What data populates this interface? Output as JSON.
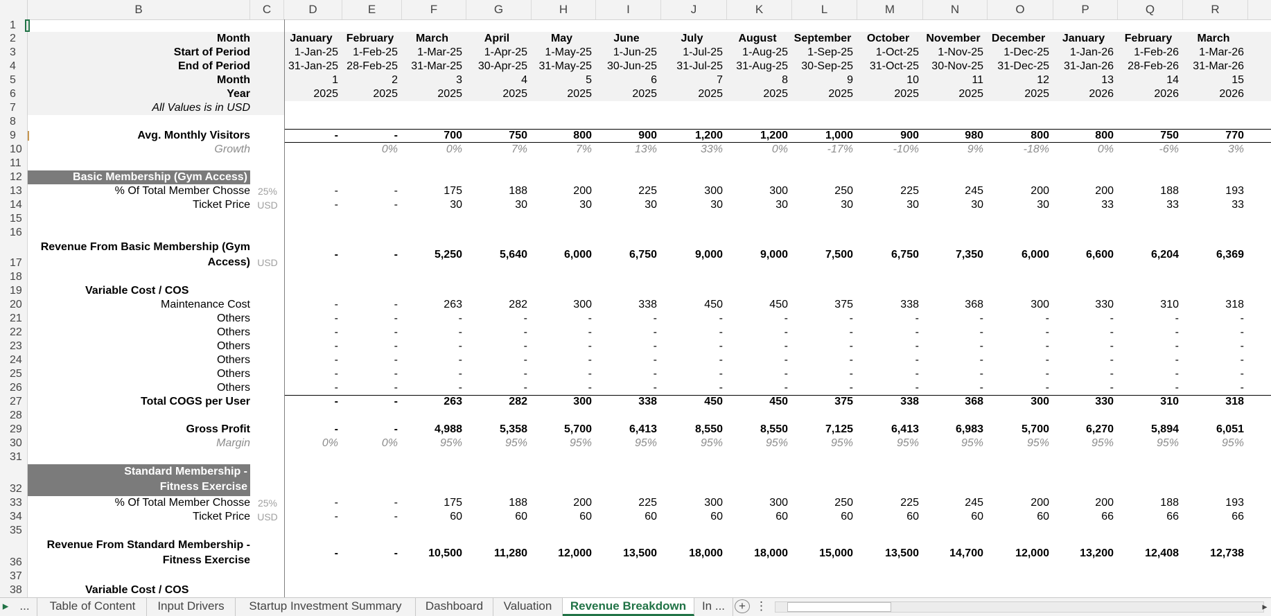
{
  "columns": [
    "B",
    "C",
    "D",
    "E",
    "F",
    "G",
    "H",
    "I",
    "J",
    "K",
    "L",
    "M",
    "N",
    "O",
    "P",
    "Q",
    "R"
  ],
  "header_rows": {
    "month_name": {
      "label": "Month",
      "values": [
        "January",
        "February",
        "March",
        "April",
        "May",
        "June",
        "July",
        "August",
        "September",
        "October",
        "November",
        "December",
        "January",
        "February",
        "March"
      ]
    },
    "start": {
      "label": "Start of Period",
      "values": [
        "1-Jan-25",
        "1-Feb-25",
        "1-Mar-25",
        "1-Apr-25",
        "1-May-25",
        "1-Jun-25",
        "1-Jul-25",
        "1-Aug-25",
        "1-Sep-25",
        "1-Oct-25",
        "1-Nov-25",
        "1-Dec-25",
        "1-Jan-26",
        "1-Feb-26",
        "1-Mar-26"
      ]
    },
    "end": {
      "label": "End of Period",
      "values": [
        "31-Jan-25",
        "28-Feb-25",
        "31-Mar-25",
        "30-Apr-25",
        "31-May-25",
        "30-Jun-25",
        "31-Jul-25",
        "31-Aug-25",
        "30-Sep-25",
        "31-Oct-25",
        "30-Nov-25",
        "31-Dec-25",
        "31-Jan-26",
        "28-Feb-26",
        "31-Mar-26"
      ]
    },
    "month_num": {
      "label": "Month",
      "values": [
        "1",
        "2",
        "3",
        "4",
        "5",
        "6",
        "7",
        "8",
        "9",
        "10",
        "11",
        "12",
        "13",
        "14",
        "15"
      ]
    },
    "year": {
      "label": "Year",
      "values": [
        "2025",
        "2025",
        "2025",
        "2025",
        "2025",
        "2025",
        "2025",
        "2025",
        "2025",
        "2025",
        "2025",
        "2025",
        "2026",
        "2026",
        "2026"
      ]
    },
    "note": "All Values is in USD"
  },
  "visitors": {
    "label": "Avg. Monthly Visitors",
    "values": [
      "-",
      "-",
      "700",
      "750",
      "800",
      "900",
      "1,200",
      "1,200",
      "1,000",
      "900",
      "980",
      "800",
      "800",
      "750",
      "770"
    ]
  },
  "growth": {
    "label": "Growth",
    "values": [
      "",
      "0%",
      "0%",
      "7%",
      "7%",
      "13%",
      "33%",
      "0%",
      "-17%",
      "-10%",
      "9%",
      "-18%",
      "0%",
      "-6%",
      "3%"
    ]
  },
  "basic": {
    "title": "Basic Membership (Gym Access)",
    "pct": {
      "label": "% Of Total Member Chosse",
      "unit": "25%",
      "values": [
        "-",
        "-",
        "175",
        "188",
        "200",
        "225",
        "300",
        "300",
        "250",
        "225",
        "245",
        "200",
        "200",
        "188",
        "193"
      ]
    },
    "price": {
      "label": "Ticket Price",
      "unit": "USD",
      "values": [
        "-",
        "-",
        "30",
        "30",
        "30",
        "30",
        "30",
        "30",
        "30",
        "30",
        "30",
        "30",
        "33",
        "33",
        "33"
      ]
    },
    "revenue": {
      "label1": "Revenue From Basic Membership (Gym",
      "label2": "Access)",
      "unit": "USD",
      "values": [
        "-",
        "-",
        "5,250",
        "5,640",
        "6,000",
        "6,750",
        "9,000",
        "9,000",
        "7,500",
        "6,750",
        "7,350",
        "6,000",
        "6,600",
        "6,204",
        "6,369"
      ]
    },
    "varcost_title": "Variable Cost / COS",
    "maintenance": {
      "label": "Maintenance Cost",
      "values": [
        "-",
        "-",
        "263",
        "282",
        "300",
        "338",
        "450",
        "450",
        "375",
        "338",
        "368",
        "300",
        "330",
        "310",
        "318"
      ]
    },
    "others_label": "Others",
    "others_values": [
      "-",
      "-",
      "-",
      "-",
      "-",
      "-",
      "-",
      "-",
      "-",
      "-",
      "-",
      "-",
      "-",
      "-",
      "-"
    ],
    "total_cogs": {
      "label": "Total COGS per User",
      "values": [
        "-",
        "-",
        "263",
        "282",
        "300",
        "338",
        "450",
        "450",
        "375",
        "338",
        "368",
        "300",
        "330",
        "310",
        "318"
      ]
    },
    "gross_profit": {
      "label": "Gross Profit",
      "values": [
        "-",
        "-",
        "4,988",
        "5,358",
        "5,700",
        "6,413",
        "8,550",
        "8,550",
        "7,125",
        "6,413",
        "6,983",
        "5,700",
        "6,270",
        "5,894",
        "6,051"
      ]
    },
    "margin": {
      "label": "Margin",
      "values": [
        "0%",
        "0%",
        "95%",
        "95%",
        "95%",
        "95%",
        "95%",
        "95%",
        "95%",
        "95%",
        "95%",
        "95%",
        "95%",
        "95%",
        "95%"
      ]
    }
  },
  "standard": {
    "title1": "Standard Membership -",
    "title2": "Fitness Exercise",
    "pct": {
      "label": "% Of Total Member Chosse",
      "unit": "25%",
      "values": [
        "-",
        "-",
        "175",
        "188",
        "200",
        "225",
        "300",
        "300",
        "250",
        "225",
        "245",
        "200",
        "200",
        "188",
        "193"
      ]
    },
    "price": {
      "label": "Ticket Price",
      "unit": "USD",
      "values": [
        "-",
        "-",
        "60",
        "60",
        "60",
        "60",
        "60",
        "60",
        "60",
        "60",
        "60",
        "60",
        "66",
        "66",
        "66"
      ]
    },
    "revenue": {
      "label1": "Revenue From Standard Membership -",
      "label2": "Fitness Exercise",
      "values": [
        "-",
        "-",
        "10,500",
        "11,280",
        "12,000",
        "13,500",
        "18,000",
        "18,000",
        "15,000",
        "13,500",
        "14,700",
        "12,000",
        "13,200",
        "12,408",
        "12,738"
      ]
    },
    "varcost_title": "Variable Cost / COS"
  },
  "tabs": {
    "nav_prev": "▸",
    "nav_more": "...",
    "items": [
      "Table of Content",
      "Input Drivers",
      "Startup Investment Summary",
      "Dashboard",
      "Valuation",
      "Revenue Breakdown",
      "In ..."
    ],
    "active": "Revenue Breakdown",
    "add": "+",
    "options": "⋮",
    "scroll_left": "◂",
    "scroll_right": "▸"
  }
}
